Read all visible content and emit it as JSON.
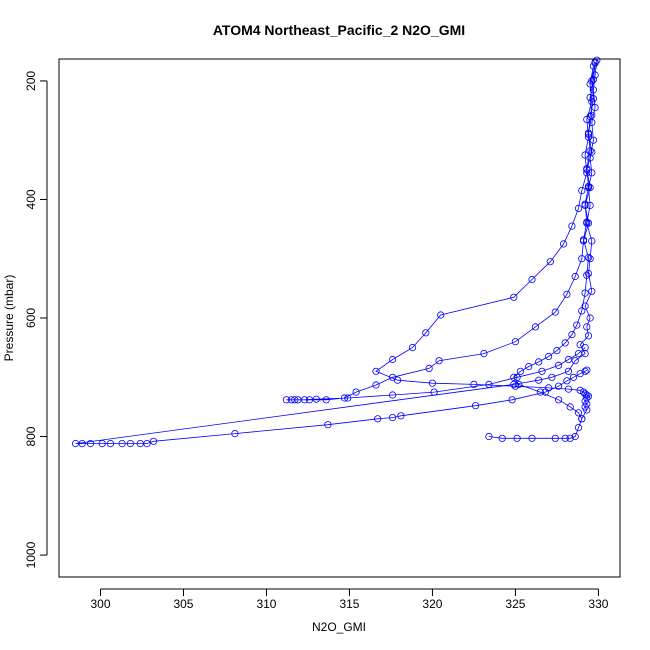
{
  "chart_data": {
    "type": "line",
    "title": "ATOM4 Northeast_Pacific_2 N2O_GMI",
    "xlabel": "N2O_GMI",
    "ylabel": "Pressure (mbar)",
    "xlim": [
      297.5,
      331.3
    ],
    "ylim": [
      1037,
      163
    ],
    "y_reversed": true,
    "grid": false,
    "x_ticks": [
      300,
      305,
      310,
      315,
      320,
      325,
      330
    ],
    "y_ticks": [
      200,
      400,
      600,
      800,
      1000
    ],
    "marker": "open-circle",
    "colors": {
      "series": "#0000ff",
      "axes": "#000000"
    },
    "series": [
      {
        "x": [
          329.9,
          329.8,
          329.7,
          329.8,
          329.6,
          329.7,
          329.5,
          329.6,
          329.4,
          329.5,
          329.3,
          329.6,
          329.5,
          329.4,
          329.6,
          329.2,
          329.5,
          329.3,
          329.4,
          328.9,
          329.2,
          328.6,
          328.2,
          327.2,
          326.4,
          324.9,
          298.5,
          298.9,
          299.4,
          300.1,
          300.6,
          301.3,
          301.8,
          302.4,
          302.8,
          303.2,
          308.1,
          313.7,
          316.7,
          317.6,
          318.1,
          322.6,
          324.8,
          326.8,
          327.6,
          328.1,
          328.5,
          328.9,
          329.2,
          329.3
        ],
        "y": [
          165,
          190,
          215,
          245,
          270,
          300,
          330,
          355,
          380,
          410,
          440,
          470,
          500,
          525,
          555,
          580,
          600,
          615,
          630,
          645,
          660,
          672,
          690,
          700,
          705,
          712,
          812,
          812,
          812,
          812,
          812,
          812,
          812,
          812,
          812,
          808,
          795,
          780,
          770,
          768,
          765,
          748,
          738,
          725,
          715,
          706,
          700,
          694,
          690,
          688
        ]
      },
      {
        "x": [
          329.8,
          329.6,
          329.7,
          329.5,
          329.4,
          329.6,
          329.3,
          329.5,
          329.2,
          329.4,
          329.1,
          329.0,
          328.6,
          328.1,
          327.4,
          326.2,
          325.0,
          323.1,
          320.4,
          319.8,
          317.6,
          316.6,
          315.4,
          314.7,
          313.6,
          312.6,
          311.7,
          311.2,
          311.5,
          311.9,
          312.3,
          313.0,
          314.9,
          317.6,
          320.1,
          323.4,
          325.1,
          326.6,
          327.6,
          328.2,
          328.8,
          329.2
        ],
        "y": [
          170,
          200,
          230,
          260,
          290,
          320,
          350,
          380,
          410,
          440,
          470,
          500,
          530,
          560,
          590,
          615,
          640,
          660,
          672,
          685,
          700,
          713,
          725,
          735,
          738,
          738,
          738,
          738,
          738,
          738,
          738,
          737,
          735,
          730,
          725,
          712,
          700,
          690,
          680,
          670,
          660,
          650
        ]
      },
      {
        "x": [
          329.7,
          329.5,
          329.6,
          329.3,
          329.4,
          329.2,
          329.3,
          329.0,
          328.8,
          328.4,
          327.9,
          327.1,
          326.0,
          324.9,
          320.5,
          319.6,
          318.8,
          317.6,
          316.6,
          317.9,
          320.0,
          322.5,
          325.0,
          327.0,
          328.2,
          328.9,
          329.1,
          329.2,
          329.3,
          329.4,
          329.3,
          329.2,
          329.3,
          329.2,
          329.3,
          329.0,
          328.8,
          328.6,
          328.3,
          328.0,
          327.4,
          326.0,
          325.1,
          324.2,
          323.4
        ],
        "y": [
          175,
          205,
          235,
          265,
          295,
          325,
          355,
          385,
          415,
          445,
          475,
          505,
          535,
          565,
          595,
          625,
          650,
          670,
          690,
          705,
          710,
          712,
          715,
          718,
          720,
          722,
          725,
          728,
          730,
          732,
          735,
          740,
          745,
          750,
          755,
          770,
          785,
          800,
          803,
          803,
          803,
          803,
          803,
          803,
          800
        ]
      },
      {
        "x": [
          329.8,
          329.7,
          329.5,
          329.6,
          329.4,
          329.5,
          329.3,
          329.4,
          329.2,
          329.3,
          329.1,
          329.4,
          329.3,
          329.2,
          329.0,
          328.7,
          328.4,
          328.0,
          327.5,
          327.0,
          326.4,
          325.8,
          325.3,
          324.9,
          325.2,
          326.5,
          327.6,
          328.3,
          328.8,
          329.0
        ],
        "y": [
          168,
          198,
          228,
          258,
          288,
          318,
          348,
          378,
          408,
          438,
          468,
          498,
          528,
          558,
          588,
          612,
          628,
          642,
          655,
          665,
          674,
          682,
          690,
          700,
          712,
          725,
          738,
          750,
          760,
          770
        ]
      }
    ]
  }
}
